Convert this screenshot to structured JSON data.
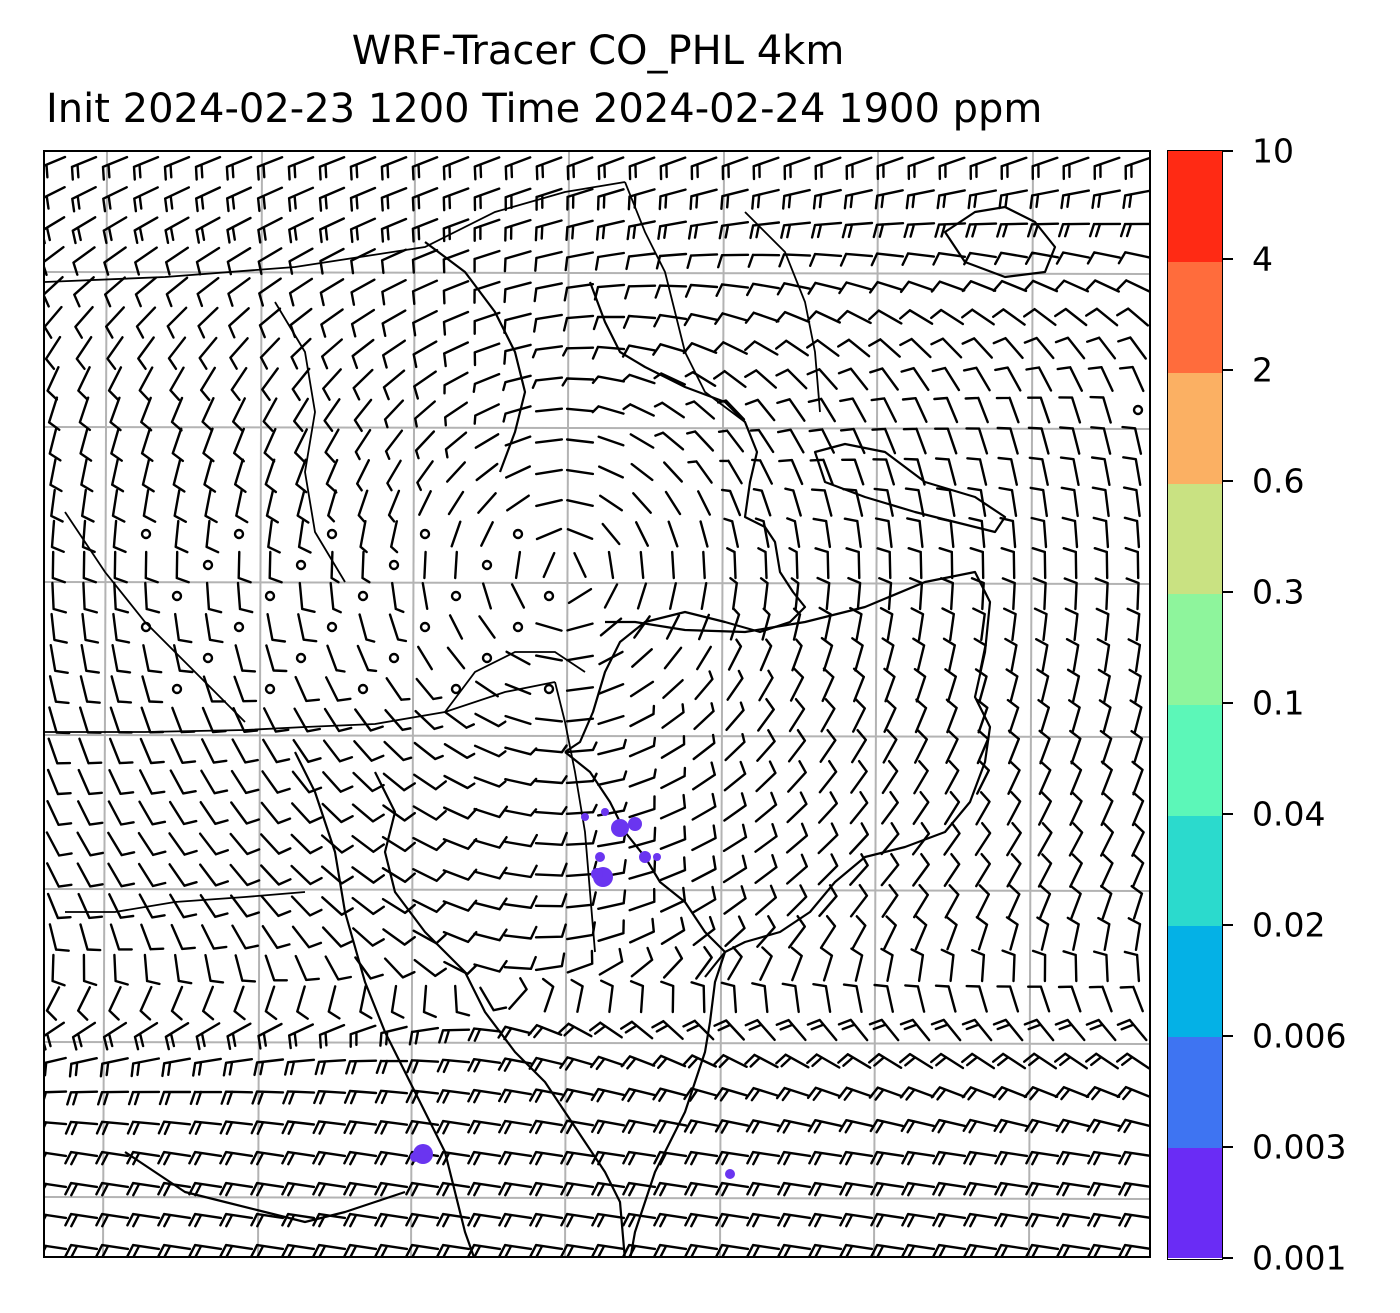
{
  "title": {
    "line1": "WRF-Tracer CO_PHL 4km",
    "line2": "Init 2024-02-23 1200 Time 2024-02-24 1900 ppm"
  },
  "map": {
    "elements": [
      "coastline-lines",
      "state-boundary-lines",
      "lat-lon-gridlines",
      "wind-barbs",
      "co-tracer-contours"
    ],
    "tracer_color": "#6a35f0"
  },
  "colorbar": {
    "ticks": [
      "0.001",
      "0.003",
      "0.006",
      "0.02",
      "0.04",
      "0.1",
      "0.3",
      "0.6",
      "2",
      "4",
      "10"
    ],
    "colors": [
      "#6a2cf5",
      "#3e74f2",
      "#04b1e6",
      "#2bdacd",
      "#5cf7b8",
      "#8ef59c",
      "#c9e282",
      "#fbb063",
      "#ff6c3c",
      "#ff2a14"
    ]
  }
}
